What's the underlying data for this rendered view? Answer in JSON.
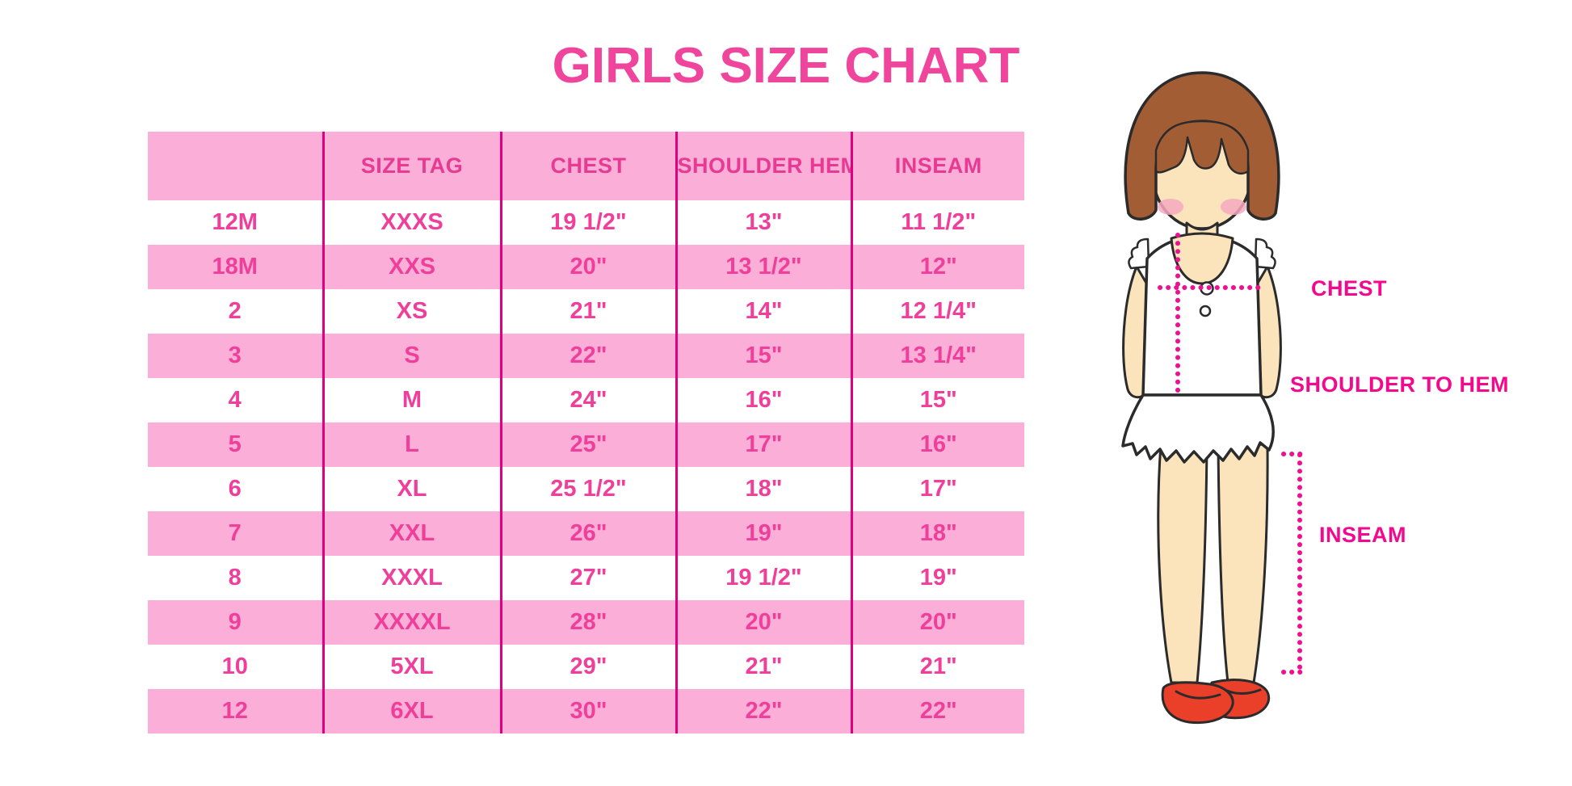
{
  "title": "GIRLS SIZE CHART",
  "table": {
    "headers": [
      "",
      "SIZE TAG",
      "CHEST",
      "SHOULDER HEM",
      "INSEAM"
    ],
    "rows": [
      [
        "12M",
        "XXXS",
        "19 1/2\"",
        "13\"",
        "11 1/2\""
      ],
      [
        "18M",
        "XXS",
        "20\"",
        "13 1/2\"",
        "12\""
      ],
      [
        "2",
        "XS",
        "21\"",
        "14\"",
        "12 1/4\""
      ],
      [
        "3",
        "S",
        "22\"",
        "15\"",
        "13 1/4\""
      ],
      [
        "4",
        "M",
        "24\"",
        "16\"",
        "15\""
      ],
      [
        "5",
        "L",
        "25\"",
        "17\"",
        "16\""
      ],
      [
        "6",
        "XL",
        "25 1/2\"",
        "18\"",
        "17\""
      ],
      [
        "7",
        "XXL",
        "26\"",
        "19\"",
        "18\""
      ],
      [
        "8",
        "XXXL",
        "27\"",
        "19 1/2\"",
        "19\""
      ],
      [
        "9",
        "XXXXL",
        "28\"",
        "20\"",
        "20\""
      ],
      [
        "10",
        "5XL",
        "29\"",
        "21\"",
        "21\""
      ],
      [
        "12",
        "6XL",
        "30\"",
        "22\"",
        "22\""
      ]
    ]
  },
  "figure": {
    "labels": {
      "chest": "CHEST",
      "shoulder_to_hem": "SHOULDER TO HEM",
      "inseam": "INSEAM"
    }
  },
  "colors": {
    "title_pink": "#F0459C",
    "header_text_pink": "#E83A92",
    "cell_text_pink": "#EF3F9A",
    "row_pink": "#FBAED7",
    "divider_magenta": "#DF0080",
    "label_magenta": "#F2098E",
    "dotted_line_magenta": "#ED1090",
    "hair_brown": "#A35D35",
    "skin_tone": "#FBE4BC",
    "blush_pink": "#F6A9C0",
    "shoe_red": "#EA3F28"
  }
}
